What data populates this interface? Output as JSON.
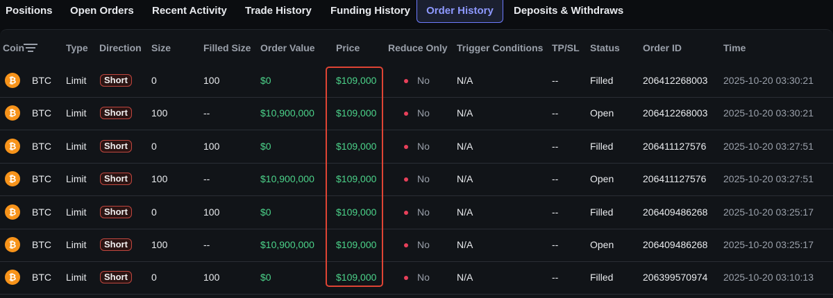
{
  "tabs": [
    {
      "label": "Positions"
    },
    {
      "label": "Open Orders"
    },
    {
      "label": "Recent Activity"
    },
    {
      "label": "Trade History"
    },
    {
      "label": "Funding History"
    },
    {
      "label": "Order History",
      "active": true
    },
    {
      "label": "Deposits & Withdraws"
    }
  ],
  "columns": {
    "coin": "Coin",
    "type": "Type",
    "direction": "Direction",
    "size": "Size",
    "filled_size": "Filled Size",
    "order_value": "Order Value",
    "price": "Price",
    "reduce_only": "Reduce Only",
    "trigger_conditions": "Trigger Conditions",
    "tpsl": "TP/SL",
    "status": "Status",
    "order_id": "Order ID",
    "time": "Time"
  },
  "rows": [
    {
      "coin": "BTC",
      "type": "Limit",
      "direction": "Short",
      "size": "0",
      "filled_size": "100",
      "order_value": "$0",
      "price": "$109,000",
      "reduce_only": "No",
      "trigger_conditions": "N/A",
      "tpsl": "--",
      "status": "Filled",
      "order_id": "206412268003",
      "time": "2025-10-20 03:30:21"
    },
    {
      "coin": "BTC",
      "type": "Limit",
      "direction": "Short",
      "size": "100",
      "filled_size": "--",
      "order_value": "$10,900,000",
      "price": "$109,000",
      "reduce_only": "No",
      "trigger_conditions": "N/A",
      "tpsl": "--",
      "status": "Open",
      "order_id": "206412268003",
      "time": "2025-10-20 03:30:21"
    },
    {
      "coin": "BTC",
      "type": "Limit",
      "direction": "Short",
      "size": "0",
      "filled_size": "100",
      "order_value": "$0",
      "price": "$109,000",
      "reduce_only": "No",
      "trigger_conditions": "N/A",
      "tpsl": "--",
      "status": "Filled",
      "order_id": "206411127576",
      "time": "2025-10-20 03:27:51"
    },
    {
      "coin": "BTC",
      "type": "Limit",
      "direction": "Short",
      "size": "100",
      "filled_size": "--",
      "order_value": "$10,900,000",
      "price": "$109,000",
      "reduce_only": "No",
      "trigger_conditions": "N/A",
      "tpsl": "--",
      "status": "Open",
      "order_id": "206411127576",
      "time": "2025-10-20 03:27:51"
    },
    {
      "coin": "BTC",
      "type": "Limit",
      "direction": "Short",
      "size": "0",
      "filled_size": "100",
      "order_value": "$0",
      "price": "$109,000",
      "reduce_only": "No",
      "trigger_conditions": "N/A",
      "tpsl": "--",
      "status": "Filled",
      "order_id": "206409486268",
      "time": "2025-10-20 03:25:17"
    },
    {
      "coin": "BTC",
      "type": "Limit",
      "direction": "Short",
      "size": "100",
      "filled_size": "--",
      "order_value": "$10,900,000",
      "price": "$109,000",
      "reduce_only": "No",
      "trigger_conditions": "N/A",
      "tpsl": "--",
      "status": "Open",
      "order_id": "206409486268",
      "time": "2025-10-20 03:25:17"
    },
    {
      "coin": "BTC",
      "type": "Limit",
      "direction": "Short",
      "size": "0",
      "filled_size": "100",
      "order_value": "$0",
      "price": "$109,000",
      "reduce_only": "No",
      "trigger_conditions": "N/A",
      "tpsl": "--",
      "status": "Filled",
      "order_id": "206399570974",
      "time": "2025-10-20 03:10:13"
    }
  ],
  "icons": {
    "coin": "bitcoin-icon",
    "filter": "filter-icon",
    "reduce_only_indicator": "red-dot"
  },
  "colors": {
    "accent": "#8e99ff",
    "positive": "#4cd38a",
    "short_badge_border": "#c2473f",
    "dot": "#e8405a",
    "highlight": "#e04434",
    "bitcoin": "#f7931a"
  }
}
